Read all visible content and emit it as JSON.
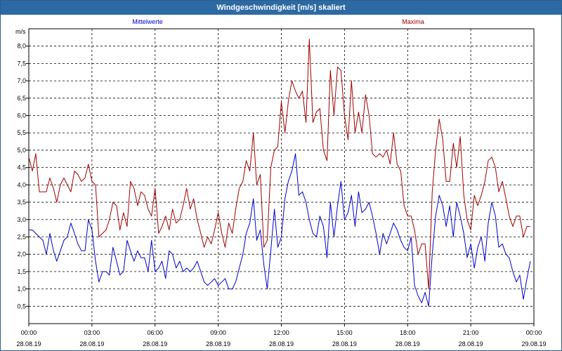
{
  "window": {
    "title": "Windgeschwindigkeit [m/s] skaliert"
  },
  "colors": {
    "titlebar": "#2d6aa3",
    "mittel": "#0000c8",
    "max": "#a00000"
  },
  "chart_data": {
    "type": "line",
    "ylabel": "m/s",
    "ylim": [
      0,
      8.5
    ],
    "yticks": [
      "0,5",
      "1,0",
      "1,5",
      "2,0",
      "2,5",
      "3,0",
      "3,5",
      "4,0",
      "4,5",
      "5,0",
      "5,5",
      "6,0",
      "6,5",
      "7,0",
      "7,5",
      "8,0"
    ],
    "xlim_hours": [
      0,
      24
    ],
    "xticks": [
      {
        "time": "00:00",
        "date": "28.08.19"
      },
      {
        "time": "03:00",
        "date": "28.08.19"
      },
      {
        "time": "06:00",
        "date": "28.08.19"
      },
      {
        "time": "09:00",
        "date": "28.08.19"
      },
      {
        "time": "12:00",
        "date": "28.08.19"
      },
      {
        "time": "15:00",
        "date": "28.08.19"
      },
      {
        "time": "18:00",
        "date": "28.08.19"
      },
      {
        "time": "21:00",
        "date": "28.08.19"
      },
      {
        "time": "00:00",
        "date": "29.08.19"
      }
    ],
    "grid": true,
    "x_hours": [
      0,
      0.17,
      0.33,
      0.5,
      0.67,
      0.83,
      1,
      1.17,
      1.33,
      1.5,
      1.67,
      1.83,
      2,
      2.17,
      2.33,
      2.5,
      2.67,
      2.83,
      3,
      3.17,
      3.33,
      3.5,
      3.67,
      3.83,
      4,
      4.17,
      4.33,
      4.5,
      4.67,
      4.83,
      5,
      5.17,
      5.33,
      5.5,
      5.67,
      5.83,
      6,
      6.17,
      6.33,
      6.5,
      6.67,
      6.83,
      7,
      7.17,
      7.33,
      7.5,
      7.67,
      7.83,
      8,
      8.17,
      8.33,
      8.5,
      8.67,
      8.83,
      9,
      9.17,
      9.33,
      9.5,
      9.67,
      9.83,
      10,
      10.17,
      10.33,
      10.5,
      10.67,
      10.83,
      11,
      11.17,
      11.33,
      11.5,
      11.67,
      11.83,
      12,
      12.17,
      12.33,
      12.5,
      12.67,
      12.83,
      13,
      13.17,
      13.33,
      13.5,
      13.67,
      13.83,
      14,
      14.17,
      14.33,
      14.5,
      14.67,
      14.83,
      15,
      15.17,
      15.33,
      15.5,
      15.67,
      15.83,
      16,
      16.17,
      16.33,
      16.5,
      16.67,
      16.83,
      17,
      17.17,
      17.33,
      17.5,
      17.67,
      17.83,
      18,
      18.17,
      18.33,
      18.5,
      18.67,
      18.83,
      19,
      19.17,
      19.33,
      19.5,
      19.67,
      19.83,
      20,
      20.17,
      20.33,
      20.5,
      20.67,
      20.83,
      21,
      21.17,
      21.33,
      21.5,
      21.67,
      21.83,
      22,
      22.17,
      22.33,
      22.5,
      22.67,
      22.83,
      23,
      23.17,
      23.33,
      23.5,
      23.67,
      23.83,
      24
    ],
    "series": [
      {
        "name": "Mittelwerte",
        "color": "#0000c8",
        "values": [
          2.7,
          2.7,
          2.6,
          2.5,
          2.4,
          2,
          2.6,
          2.1,
          1.8,
          2.1,
          2.4,
          2.5,
          2.9,
          2.6,
          2.3,
          2.1,
          2.1,
          3,
          2.7,
          1.8,
          1.2,
          1.5,
          1.5,
          1.4,
          2.2,
          1.8,
          1.4,
          1.5,
          2.4,
          2.1,
          1.8,
          2.1,
          1.9,
          1.9,
          1.5,
          2.4,
          1.5,
          1.6,
          1.8,
          1.3,
          2.1,
          2,
          1.6,
          1.8,
          1.5,
          1.6,
          1.5,
          1.6,
          1.8,
          1.5,
          1.2,
          1.1,
          1.2,
          1.3,
          1.1,
          1.2,
          1.3,
          1,
          1,
          1.2,
          1.6,
          2,
          2.6,
          2.9,
          3.6,
          2.4,
          2.7,
          1.7,
          1,
          2.1,
          3.3,
          2.2,
          2.5,
          3.6,
          4.1,
          4.4,
          4.9,
          3.7,
          3.8,
          3.5,
          3,
          2.6,
          2.5,
          3.1,
          2.8,
          1.9,
          3.5,
          2.5,
          3.4,
          4.1,
          3,
          3.2,
          3.7,
          2.8,
          3.8,
          3.2,
          3.3,
          3.5,
          3.1,
          2.6,
          2,
          2.6,
          2.3,
          2.6,
          2.9,
          2.7,
          2.4,
          2.2,
          2.1,
          2.5,
          1.1,
          0.8,
          0.6,
          0.9,
          0.5,
          2,
          3.1,
          3.7,
          3.4,
          2.8,
          3.4,
          2.5,
          3.5,
          3.1,
          2.6,
          1.9,
          2.3,
          1.6,
          2.2,
          2.5,
          1.8,
          2.9,
          3.5,
          3.1,
          2.2,
          2.3,
          2,
          1.9,
          1.5,
          1.2,
          1.4,
          0.7,
          1.3,
          1.8
        ]
      },
      {
        "name": "Maxima",
        "color": "#a00000",
        "values": [
          4.8,
          4.4,
          4.9,
          3.8,
          3.8,
          3.8,
          4.2,
          3.9,
          3.5,
          4,
          4.2,
          4,
          3.8,
          4.4,
          4.3,
          4.1,
          4.2,
          4.6,
          4.1,
          4,
          2.5,
          2.6,
          2.7,
          3,
          3.5,
          3.4,
          2.7,
          3.2,
          2.8,
          4.1,
          3.9,
          3.4,
          3.8,
          3.7,
          3.3,
          3.1,
          3.9,
          2.6,
          2.8,
          3.1,
          2.7,
          3.3,
          2.9,
          3,
          3.4,
          3.9,
          3.3,
          3.6,
          3,
          2.6,
          2.2,
          2.5,
          2.3,
          2.7,
          3.2,
          2.6,
          2.2,
          2.9,
          2.6,
          3.3,
          3.9,
          4.1,
          4.7,
          4.4,
          5.5,
          4,
          4.3,
          2.2,
          2.4,
          4.5,
          5,
          5.1,
          6.4,
          5.5,
          6.4,
          7,
          6.7,
          6.5,
          6.7,
          5.8,
          8.2,
          5.8,
          6.1,
          6.2,
          5,
          4.7,
          7.3,
          6,
          7.4,
          7.3,
          6,
          5.3,
          7,
          5.5,
          6.1,
          5.5,
          6.6,
          6,
          4.9,
          4.8,
          4.9,
          4.8,
          5,
          4.6,
          5.5,
          4.6,
          4.4,
          3.4,
          3.1,
          3.1,
          2.7,
          2,
          2.3,
          2.3,
          1,
          3.8,
          5,
          5.9,
          5.3,
          4.1,
          4.1,
          5.2,
          4.5,
          5.4,
          3.7,
          3,
          2.7,
          3.7,
          3.4,
          3.7,
          4.1,
          4.7,
          4.8,
          4.5,
          3.8,
          4.1,
          3.6,
          3.1,
          2.8,
          3.1,
          3.1,
          2.5,
          2.8,
          2.8
        ]
      }
    ]
  }
}
